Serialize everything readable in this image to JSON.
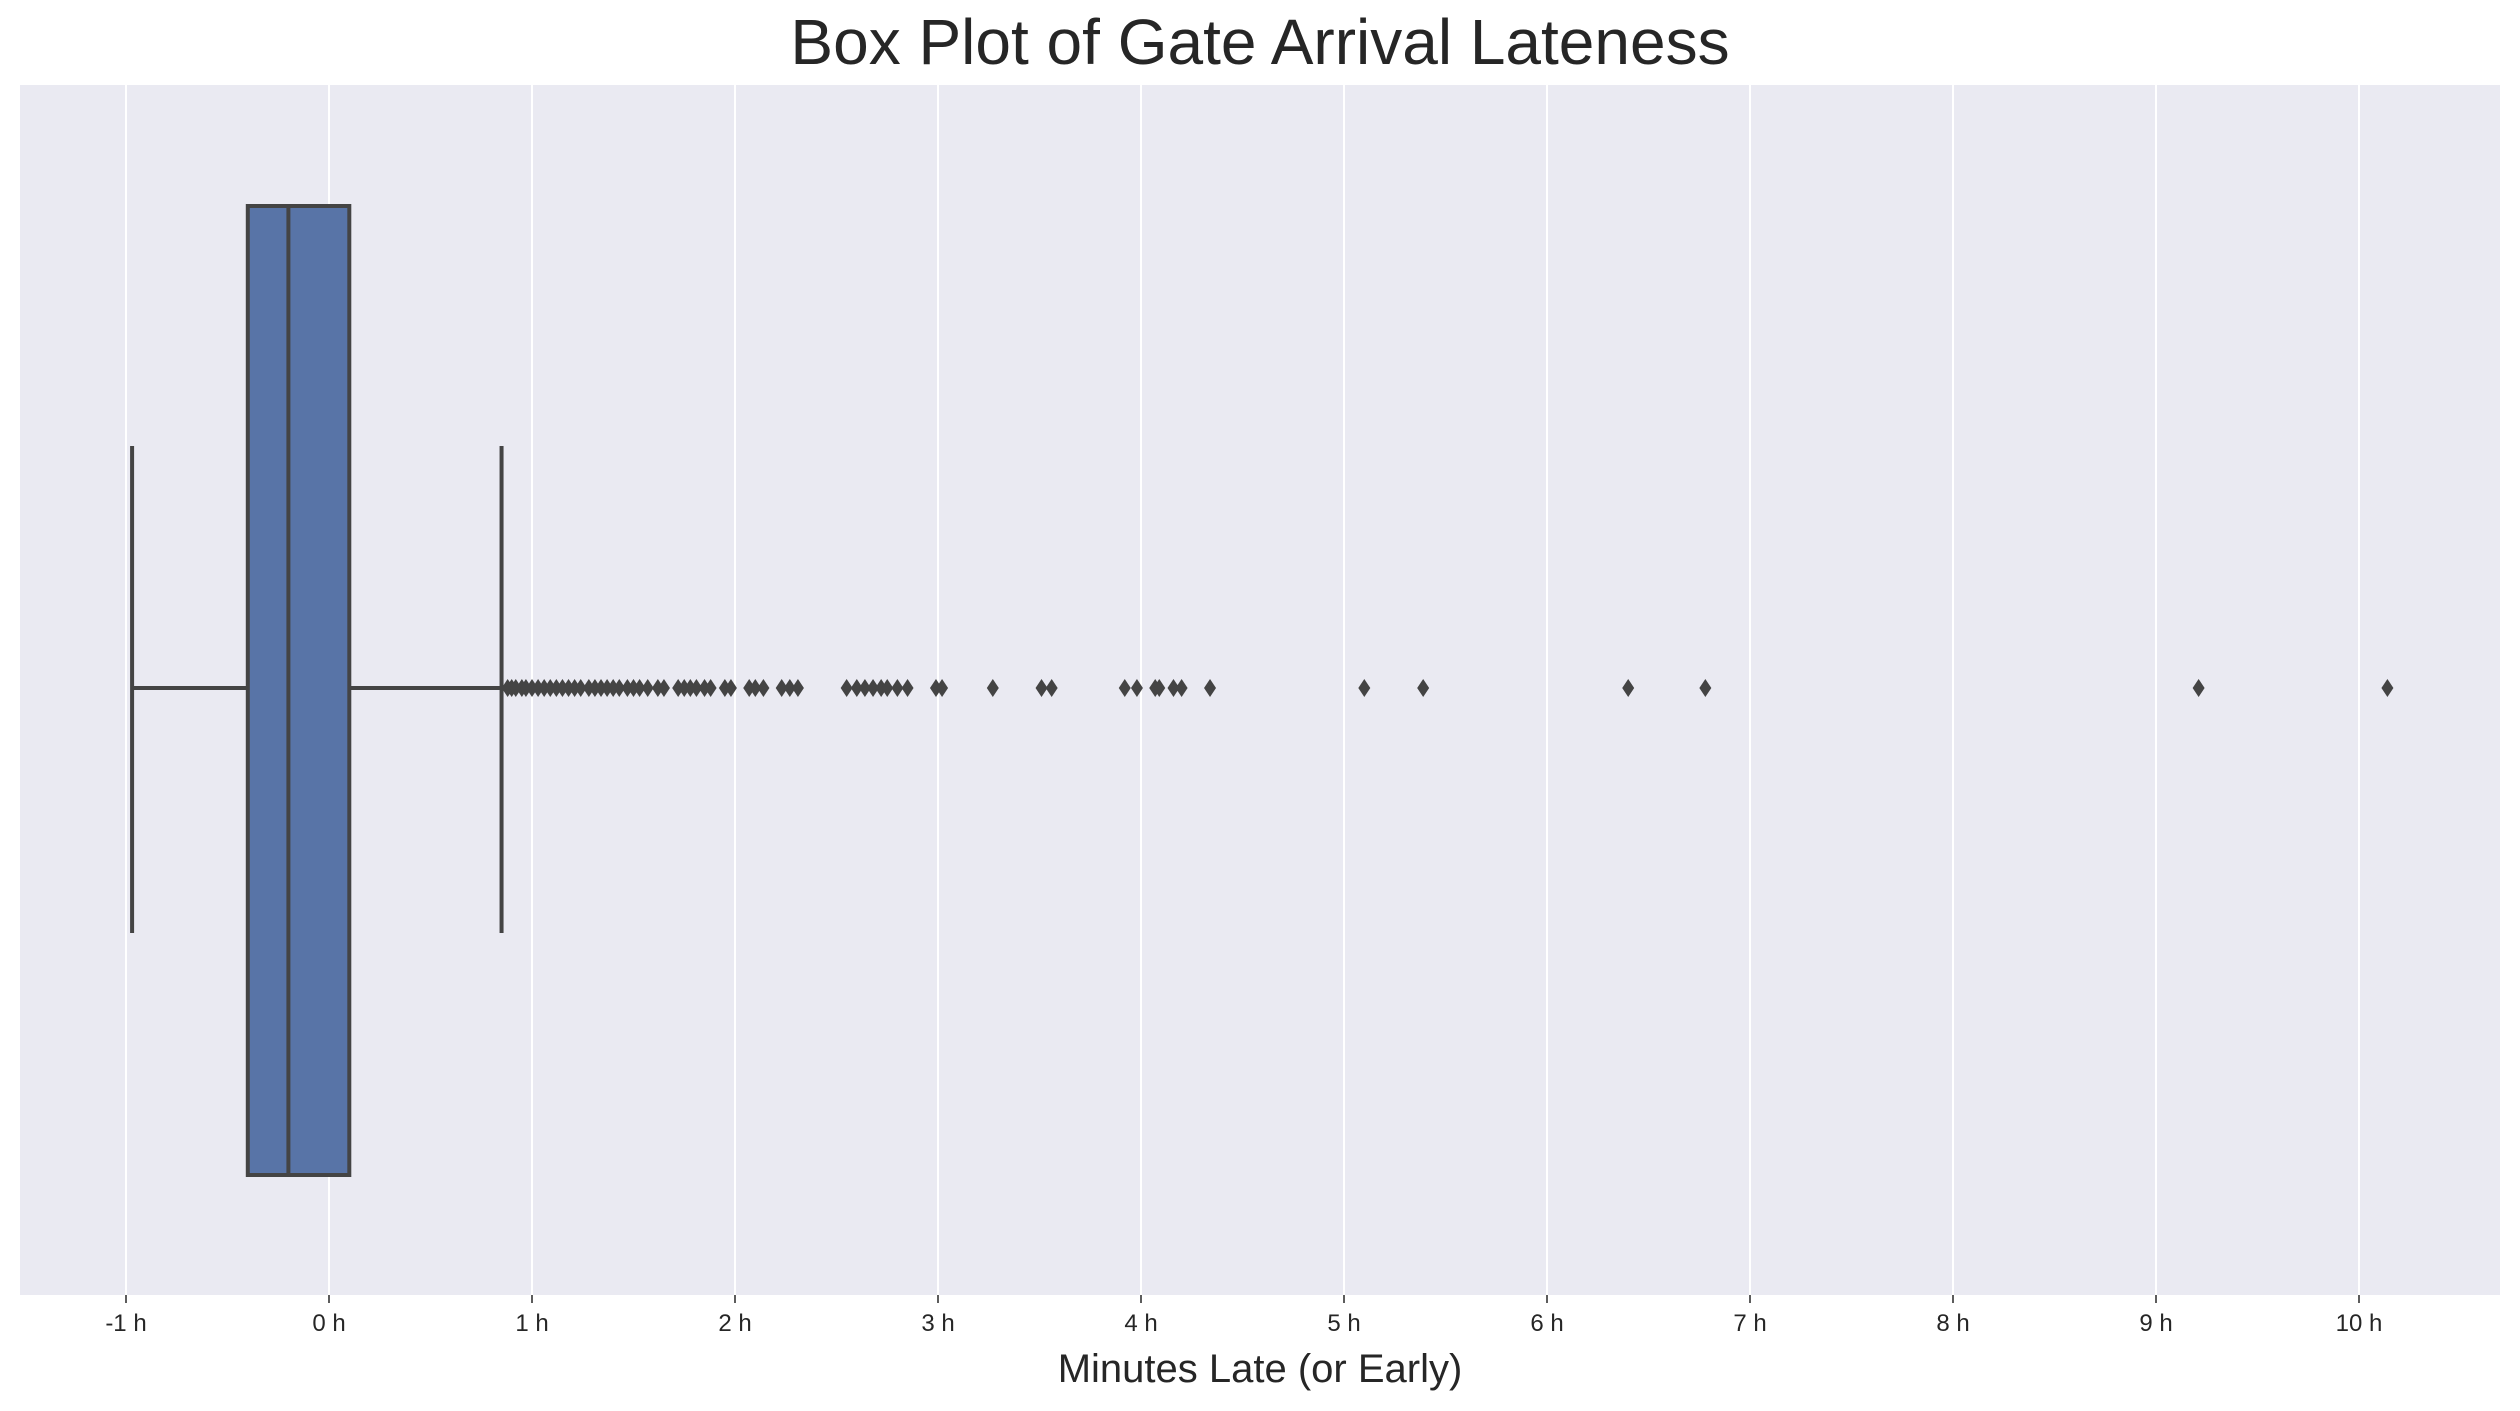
{
  "chart_data": {
    "type": "box",
    "orientation": "horizontal",
    "title": "Box Plot of Gate Arrival Lateness",
    "xlabel": "Minutes Late (or Early)",
    "ylabel": "",
    "xlim": [
      -1.1,
      10.5
    ],
    "ticks": [
      {
        "value": -1,
        "label": "-1 h"
      },
      {
        "value": 0,
        "label": "0 h"
      },
      {
        "value": 1,
        "label": "1 h"
      },
      {
        "value": 2,
        "label": "2 h"
      },
      {
        "value": 3,
        "label": "3 h"
      },
      {
        "value": 4,
        "label": "4 h"
      },
      {
        "value": 5,
        "label": "5 h"
      },
      {
        "value": 6,
        "label": "6 h"
      },
      {
        "value": 7,
        "label": "7 h"
      },
      {
        "value": 8,
        "label": "8 h"
      },
      {
        "value": 9,
        "label": "9 h"
      },
      {
        "value": 10,
        "label": "10 h"
      }
    ],
    "grid": true,
    "box": {
      "whisker_low": -0.97,
      "q1": -0.4,
      "median": -0.2,
      "q3": 0.1,
      "whisker_high": 0.85
    },
    "outliers": [
      0.88,
      0.9,
      0.92,
      0.95,
      0.97,
      1.0,
      1.03,
      1.06,
      1.09,
      1.12,
      1.15,
      1.18,
      1.21,
      1.24,
      1.28,
      1.31,
      1.34,
      1.37,
      1.4,
      1.43,
      1.47,
      1.5,
      1.53,
      1.57,
      1.62,
      1.65,
      1.72,
      1.75,
      1.78,
      1.81,
      1.85,
      1.88,
      1.95,
      1.98,
      2.07,
      2.1,
      2.14,
      2.23,
      2.27,
      2.31,
      2.55,
      2.6,
      2.64,
      2.68,
      2.72,
      2.75,
      2.8,
      2.85,
      2.99,
      3.02,
      3.27,
      3.51,
      3.56,
      3.92,
      3.98,
      4.07,
      4.09,
      4.16,
      4.2,
      4.34,
      5.1,
      5.39,
      6.4,
      6.78,
      9.21,
      10.14
    ],
    "colors": {
      "box_fill": "#5874a7",
      "lines": "#444444",
      "background": "#eaeaf2",
      "grid": "#ffffff"
    }
  }
}
